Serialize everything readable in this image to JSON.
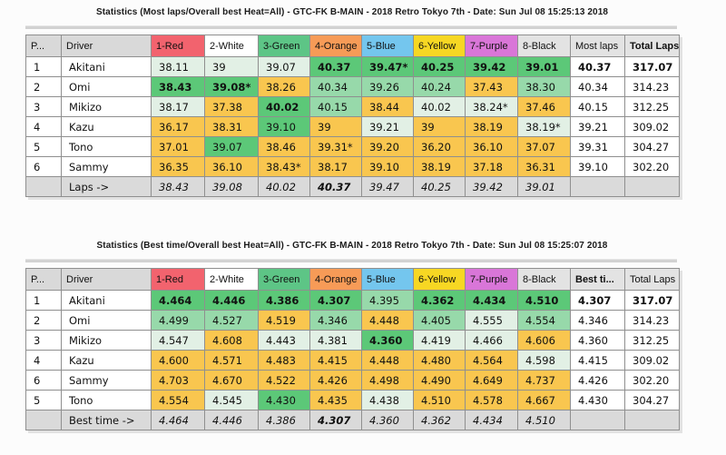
{
  "colors": {
    "header": {
      "gray": "#d9d9d9",
      "red": "#f2636e",
      "white": "#ffffff",
      "green": "#5dc586",
      "orange": "#f79b57",
      "blue": "#74c6ee",
      "yellow": "#f7d723",
      "purple": "#d976d8",
      "lightgray": "#e3e3e3"
    },
    "cell": {
      "g": "#5cc878",
      "m": "#97d9aa",
      "p": "#e2f0e5",
      "o": "#f9c64f",
      "w": "#ffffff"
    }
  },
  "tables": [
    {
      "title": "Statistics (Most laps/Overall best Heat=All) - GTC-FK B-MAIN - 2018 Retro Tokyo 7th - Date: Sun Jul 08 15:25:13 2018",
      "columns": [
        {
          "label": "P...",
          "bg": "gray"
        },
        {
          "label": "Driver",
          "bg": "gray"
        },
        {
          "label": "1-Red",
          "bg": "red"
        },
        {
          "label": "2-White",
          "bg": "white"
        },
        {
          "label": "3-Green",
          "bg": "green"
        },
        {
          "label": "4-Orange",
          "bg": "orange"
        },
        {
          "label": "5-Blue",
          "bg": "blue"
        },
        {
          "label": "6-Yellow",
          "bg": "yellow"
        },
        {
          "label": "7-Purple",
          "bg": "purple"
        },
        {
          "label": "8-Black",
          "bg": "lightgray"
        },
        {
          "label": "Most laps",
          "bg": "lightgray"
        },
        {
          "label": "Total Laps",
          "bg": "lightgray",
          "bold": true
        }
      ],
      "rows": [
        {
          "pos": "1",
          "driver": "Akitani",
          "cells": [
            {
              "v": "38.11",
              "c": "p"
            },
            {
              "v": "39",
              "c": "p"
            },
            {
              "v": "39.07",
              "c": "p"
            },
            {
              "v": "40.37",
              "c": "g",
              "b": true
            },
            {
              "v": "39.47*",
              "c": "g",
              "b": true
            },
            {
              "v": "40.25",
              "c": "g",
              "b": true
            },
            {
              "v": "39.42",
              "c": "g",
              "b": true
            },
            {
              "v": "39.01",
              "c": "g",
              "b": true
            }
          ],
          "best": "40.37",
          "best_bold": true,
          "total": "317.07",
          "total_bold": true
        },
        {
          "pos": "2",
          "driver": "Omi",
          "cells": [
            {
              "v": "38.43",
              "c": "g",
              "b": true
            },
            {
              "v": "39.08*",
              "c": "g",
              "b": true
            },
            {
              "v": "38.26",
              "c": "o"
            },
            {
              "v": "40.34",
              "c": "m"
            },
            {
              "v": "39.26",
              "c": "m"
            },
            {
              "v": "40.24",
              "c": "m"
            },
            {
              "v": "37.43",
              "c": "o"
            },
            {
              "v": "38.30",
              "c": "m"
            }
          ],
          "best": "40.34",
          "total": "314.23"
        },
        {
          "pos": "3",
          "driver": "Mikizo",
          "cells": [
            {
              "v": "38.17",
              "c": "p"
            },
            {
              "v": "37.38",
              "c": "o"
            },
            {
              "v": "40.02",
              "c": "g",
              "b": true
            },
            {
              "v": "40.15",
              "c": "m"
            },
            {
              "v": "38.44",
              "c": "o"
            },
            {
              "v": "40.02",
              "c": "p"
            },
            {
              "v": "38.24*",
              "c": "p"
            },
            {
              "v": "37.46",
              "c": "o"
            }
          ],
          "best": "40.15",
          "total": "312.25"
        },
        {
          "pos": "4",
          "driver": "Kazu",
          "cells": [
            {
              "v": "36.17",
              "c": "o"
            },
            {
              "v": "38.31",
              "c": "o"
            },
            {
              "v": "39.10",
              "c": "g"
            },
            {
              "v": "39",
              "c": "o"
            },
            {
              "v": "39.21",
              "c": "p"
            },
            {
              "v": "39",
              "c": "o"
            },
            {
              "v": "38.19",
              "c": "o"
            },
            {
              "v": "38.19*",
              "c": "p"
            }
          ],
          "best": "39.21",
          "total": "309.02"
        },
        {
          "pos": "5",
          "driver": "Tono",
          "cells": [
            {
              "v": "37.01",
              "c": "o"
            },
            {
              "v": "39.07",
              "c": "g"
            },
            {
              "v": "38.46",
              "c": "o"
            },
            {
              "v": "39.31*",
              "c": "o"
            },
            {
              "v": "39.20",
              "c": "o"
            },
            {
              "v": "36.20",
              "c": "o"
            },
            {
              "v": "36.10",
              "c": "o"
            },
            {
              "v": "37.07",
              "c": "o"
            }
          ],
          "best": "39.31",
          "total": "304.27"
        },
        {
          "pos": "6",
          "driver": "Sammy",
          "cells": [
            {
              "v": "36.35",
              "c": "o"
            },
            {
              "v": "36.10",
              "c": "o"
            },
            {
              "v": "38.43*",
              "c": "o"
            },
            {
              "v": "38.17",
              "c": "o"
            },
            {
              "v": "39.10",
              "c": "o"
            },
            {
              "v": "38.19",
              "c": "o"
            },
            {
              "v": "37.18",
              "c": "o"
            },
            {
              "v": "36.31",
              "c": "o"
            }
          ],
          "best": "39.10",
          "total": "302.20"
        }
      ],
      "footer": {
        "label": "Laps ->",
        "cells": [
          {
            "v": "38.43"
          },
          {
            "v": "39.08"
          },
          {
            "v": "40.02"
          },
          {
            "v": "40.37",
            "b": true
          },
          {
            "v": "39.47"
          },
          {
            "v": "40.25"
          },
          {
            "v": "39.42"
          },
          {
            "v": "39.01"
          }
        ]
      }
    },
    {
      "title": "Statistics (Best time/Overall best Heat=All) - GTC-FK B-MAIN - 2018 Retro Tokyo 7th - Date: Sun Jul 08 15:25:07 2018",
      "columns": [
        {
          "label": "P...",
          "bg": "gray"
        },
        {
          "label": "Driver",
          "bg": "gray"
        },
        {
          "label": "1-Red",
          "bg": "red"
        },
        {
          "label": "2-White",
          "bg": "white"
        },
        {
          "label": "3-Green",
          "bg": "green"
        },
        {
          "label": "4-Orange",
          "bg": "orange"
        },
        {
          "label": "5-Blue",
          "bg": "blue"
        },
        {
          "label": "6-Yellow",
          "bg": "yellow"
        },
        {
          "label": "7-Purple",
          "bg": "purple"
        },
        {
          "label": "8-Black",
          "bg": "lightgray"
        },
        {
          "label": "Best ti...",
          "bg": "lightgray",
          "bold": true
        },
        {
          "label": "Total Laps",
          "bg": "lightgray"
        }
      ],
      "rows": [
        {
          "pos": "1",
          "driver": "Akitani",
          "cells": [
            {
              "v": "4.464",
              "c": "g",
              "b": true
            },
            {
              "v": "4.446",
              "c": "g",
              "b": true
            },
            {
              "v": "4.386",
              "c": "g",
              "b": true
            },
            {
              "v": "4.307",
              "c": "g",
              "b": true
            },
            {
              "v": "4.395",
              "c": "m"
            },
            {
              "v": "4.362",
              "c": "g",
              "b": true
            },
            {
              "v": "4.434",
              "c": "g",
              "b": true
            },
            {
              "v": "4.510",
              "c": "g",
              "b": true
            }
          ],
          "best": "4.307",
          "best_bold": true,
          "total": "317.07",
          "total_bold": true
        },
        {
          "pos": "2",
          "driver": "Omi",
          "cells": [
            {
              "v": "4.499",
              "c": "m"
            },
            {
              "v": "4.527",
              "c": "m"
            },
            {
              "v": "4.519",
              "c": "o"
            },
            {
              "v": "4.346",
              "c": "m"
            },
            {
              "v": "4.448",
              "c": "o"
            },
            {
              "v": "4.405",
              "c": "m"
            },
            {
              "v": "4.555",
              "c": "p"
            },
            {
              "v": "4.554",
              "c": "m"
            }
          ],
          "best": "4.346",
          "total": "314.23"
        },
        {
          "pos": "3",
          "driver": "Mikizo",
          "cells": [
            {
              "v": "4.547",
              "c": "p"
            },
            {
              "v": "4.608",
              "c": "o"
            },
            {
              "v": "4.443",
              "c": "p"
            },
            {
              "v": "4.381",
              "c": "p"
            },
            {
              "v": "4.360",
              "c": "g",
              "b": true
            },
            {
              "v": "4.419",
              "c": "p"
            },
            {
              "v": "4.466",
              "c": "p"
            },
            {
              "v": "4.606",
              "c": "o"
            }
          ],
          "best": "4.360",
          "total": "312.25"
        },
        {
          "pos": "4",
          "driver": "Kazu",
          "cells": [
            {
              "v": "4.600",
              "c": "o"
            },
            {
              "v": "4.571",
              "c": "o"
            },
            {
              "v": "4.483",
              "c": "o"
            },
            {
              "v": "4.415",
              "c": "o"
            },
            {
              "v": "4.448",
              "c": "o"
            },
            {
              "v": "4.480",
              "c": "o"
            },
            {
              "v": "4.564",
              "c": "o"
            },
            {
              "v": "4.598",
              "c": "p"
            }
          ],
          "best": "4.415",
          "total": "309.02"
        },
        {
          "pos": "6",
          "driver": "Sammy",
          "cells": [
            {
              "v": "4.703",
              "c": "o"
            },
            {
              "v": "4.670",
              "c": "o"
            },
            {
              "v": "4.522",
              "c": "o"
            },
            {
              "v": "4.426",
              "c": "o"
            },
            {
              "v": "4.498",
              "c": "o"
            },
            {
              "v": "4.490",
              "c": "o"
            },
            {
              "v": "4.649",
              "c": "o"
            },
            {
              "v": "4.737",
              "c": "o"
            }
          ],
          "best": "4.426",
          "total": "302.20"
        },
        {
          "pos": "5",
          "driver": "Tono",
          "cells": [
            {
              "v": "4.554",
              "c": "o"
            },
            {
              "v": "4.545",
              "c": "p"
            },
            {
              "v": "4.430",
              "c": "g"
            },
            {
              "v": "4.435",
              "c": "o"
            },
            {
              "v": "4.438",
              "c": "p"
            },
            {
              "v": "4.510",
              "c": "o"
            },
            {
              "v": "4.578",
              "c": "o"
            },
            {
              "v": "4.667",
              "c": "o"
            }
          ],
          "best": "4.430",
          "total": "304.27"
        }
      ],
      "footer": {
        "label": "Best time ->",
        "cells": [
          {
            "v": "4.464"
          },
          {
            "v": "4.446"
          },
          {
            "v": "4.386"
          },
          {
            "v": "4.307",
            "b": true
          },
          {
            "v": "4.360"
          },
          {
            "v": "4.362"
          },
          {
            "v": "4.434"
          },
          {
            "v": "4.510"
          }
        ]
      }
    }
  ]
}
